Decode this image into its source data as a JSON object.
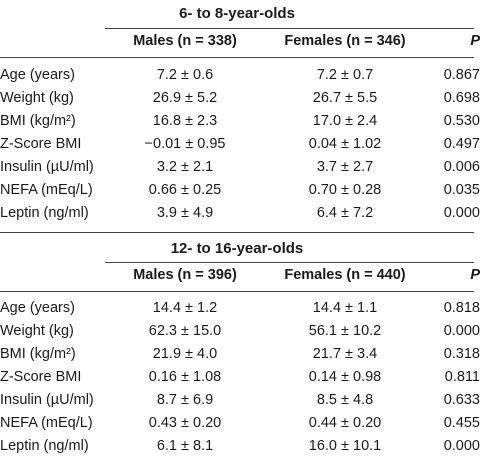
{
  "tables": [
    {
      "title": "6- to 8-year-olds",
      "columns": [
        "Males (n = 338)",
        "Females (n = 346)",
        "P"
      ],
      "rows": [
        [
          "Age (years)",
          "7.2 ± 0.6",
          "7.2 ± 0.7",
          "0.867"
        ],
        [
          "Weight (kg)",
          "26.9 ± 5.2",
          "26.7 ± 5.5",
          "0.698"
        ],
        [
          "BMI (kg/m²)",
          "16.8 ± 2.3",
          "17.0 ± 2.4",
          "0.530"
        ],
        [
          "Z-Score BMI",
          "−0.01 ± 0.95",
          "0.04 ± 1.02",
          "0.497"
        ],
        [
          "Insulin (µU/ml)",
          "3.2 ± 2.1",
          "3.7 ± 2.7",
          "0.006"
        ],
        [
          "NEFA (mEq/L)",
          "0.66 ± 0.25",
          "0.70 ± 0.28",
          "0.035"
        ],
        [
          "Leptin (ng/ml)",
          "3.9 ± 4.9",
          "6.4 ± 7.2",
          "0.000"
        ]
      ]
    },
    {
      "title": "12- to 16-year-olds",
      "columns": [
        "Males (n = 396)",
        "Females (n = 440)",
        "P"
      ],
      "rows": [
        [
          "Age (years)",
          "14.4 ± 1.2",
          "14.4 ± 1.1",
          "0.818"
        ],
        [
          "Weight (kg)",
          "62.3 ± 15.0",
          "56.1 ± 10.2",
          "0.000"
        ],
        [
          "BMI (kg/m²)",
          "21.9 ± 4.0",
          "21.7 ± 3.4",
          "0.318"
        ],
        [
          "Z-Score BMI",
          "0.16 ± 1.08",
          "0.14 ± 0.98",
          "0.811"
        ],
        [
          "Insulin (µU/ml)",
          "8.7 ± 6.9",
          "8.5 ± 4.8",
          "0.633"
        ],
        [
          "NEFA (mEq/L)",
          "0.43 ± 0.20",
          "0.44 ± 0.20",
          "0.455"
        ],
        [
          "Leptin (ng/ml)",
          "6.1 ± 8.1",
          "16.0 ± 10.1",
          "0.000"
        ]
      ]
    }
  ]
}
